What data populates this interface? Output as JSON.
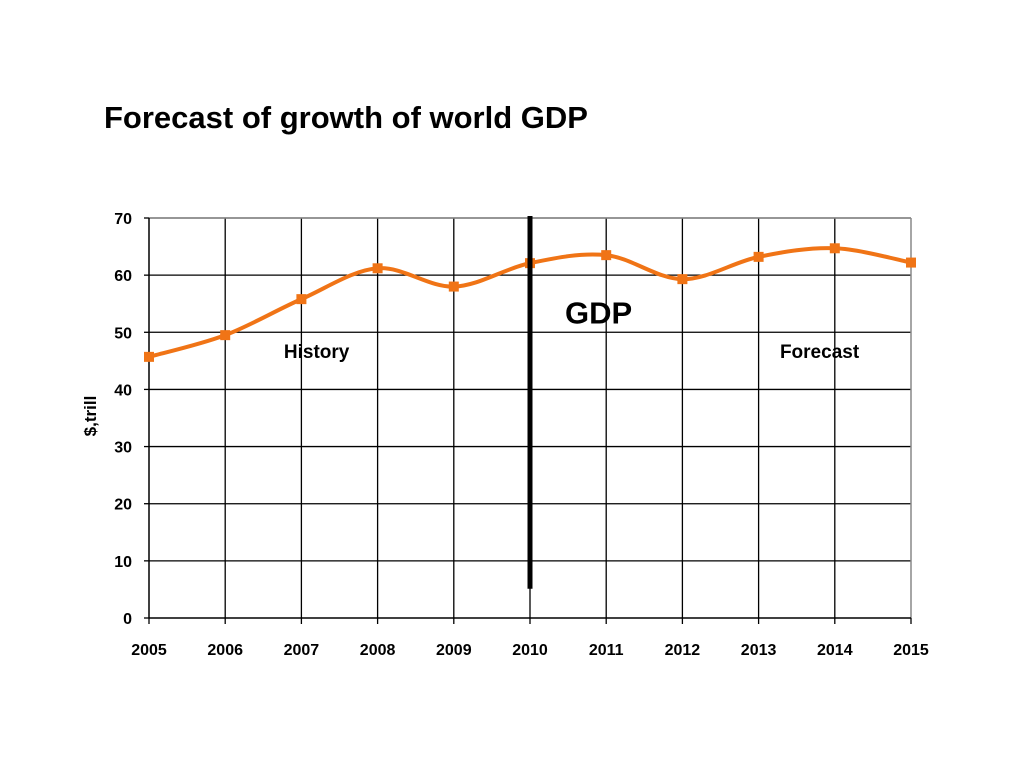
{
  "title": "Forecast of growth of world GDP",
  "chart_data": {
    "type": "line",
    "title": "Forecast of growth of world GDP",
    "xlabel": "",
    "ylabel": "$,trill",
    "x": [
      2005,
      2006,
      2007,
      2008,
      2009,
      2010,
      2011,
      2012,
      2013,
      2014,
      2015
    ],
    "xlim": [
      2005,
      2015
    ],
    "ylim": [
      0,
      70
    ],
    "yticks": [
      0,
      10,
      20,
      30,
      40,
      50,
      60,
      70
    ],
    "grid": true,
    "legend": "none",
    "series": [
      {
        "values": [
          45.7,
          49.5,
          55.8,
          61.2,
          58.0,
          62.1,
          63.5,
          59.3,
          63.2,
          64.7,
          62.2
        ],
        "color": "#f07416",
        "marker": "square",
        "smooth": true
      }
    ],
    "divider": {
      "x": 2010,
      "y_from": 6,
      "y_to": 70,
      "color": "#000000"
    },
    "annotations": [
      {
        "text": "History",
        "x": 2007.2,
        "y": 45.5
      },
      {
        "text": "Forecast",
        "x": 2013.8,
        "y": 45.5
      },
      {
        "text": "GDP",
        "x": 2010.9,
        "y": 51.5,
        "emphasis": true
      }
    ]
  }
}
